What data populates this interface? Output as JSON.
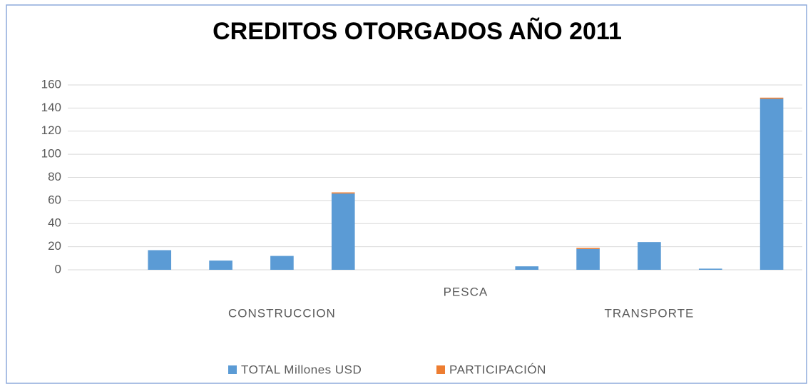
{
  "chart_data": {
    "type": "bar",
    "stacked": true,
    "title": "CREDITOS OTORGADOS AÑO 2011",
    "categories": [
      null,
      null,
      null,
      "CONSTRUCCION",
      null,
      null,
      "PESCA",
      null,
      null,
      "TRANSPORTE",
      null,
      null
    ],
    "series": [
      {
        "name": "TOTAL Millones USD",
        "color": "#5b9bd5",
        "values": [
          0,
          17,
          8,
          12,
          66,
          0,
          0,
          3,
          18,
          24,
          1,
          148
        ]
      },
      {
        "name": "PARTICIPACIÓN",
        "color": "#ed7d31",
        "values": [
          0,
          0,
          0,
          0,
          1,
          0,
          0,
          0,
          1,
          0,
          0,
          1
        ]
      }
    ],
    "ylim": [
      0,
      160
    ],
    "yticks": [
      0,
      20,
      40,
      60,
      80,
      100,
      120,
      140,
      160
    ],
    "grid": true,
    "legend": "bottom"
  }
}
